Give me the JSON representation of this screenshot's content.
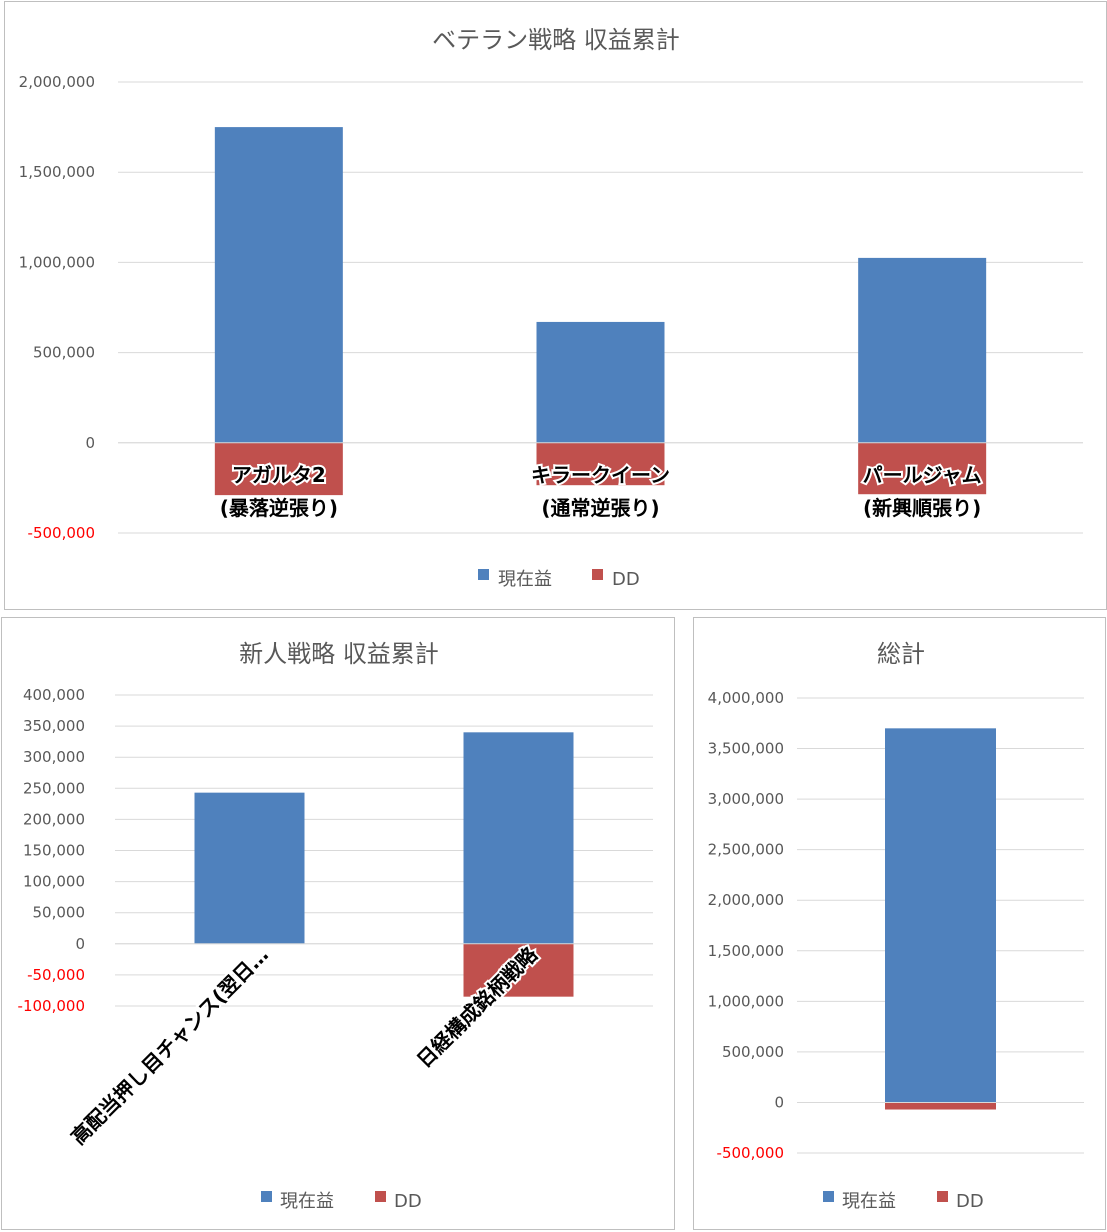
{
  "colors": {
    "series_profit": "#4f81bd",
    "series_dd": "#c0504d",
    "negative_tick": "#ff0000",
    "tick": "#595959",
    "grid": "#d9d9d9"
  },
  "legend": {
    "profit": "現在益",
    "dd": "DD"
  },
  "chart_data": [
    {
      "type": "bar",
      "stacked": true,
      "title": "ベテラン戦略 収益累計",
      "categories": [
        "アガルタ2\n(暴落逆張り)",
        "キラークイーン\n(通常逆張り)",
        "パールジャム\n(新興順張り)"
      ],
      "series": [
        {
          "name": "現在益",
          "values": [
            1750000,
            670000,
            1025000
          ]
        },
        {
          "name": "DD",
          "values": [
            -290000,
            -235000,
            -285000
          ]
        }
      ],
      "ylim": [
        -500000,
        2000000
      ],
      "yticks": [
        2000000,
        1500000,
        1000000,
        500000,
        0,
        -500000
      ],
      "ytick_labels": [
        "2,000,000",
        "1,500,000",
        "1,000,000",
        "500,000",
        "0",
        "-500,000"
      ],
      "grid": true,
      "legend_position": "bottom",
      "category_label_rotation": 0
    },
    {
      "type": "bar",
      "stacked": true,
      "title": "新人戦略 収益累計",
      "categories": [
        "高配当押し目チャンス(翌日…",
        "日経構成銘柄戦略"
      ],
      "series": [
        {
          "name": "現在益",
          "values": [
            243000,
            340000
          ]
        },
        {
          "name": "DD",
          "values": [
            0,
            -85000
          ]
        }
      ],
      "ylim": [
        -100000,
        400000
      ],
      "yticks": [
        400000,
        350000,
        300000,
        250000,
        200000,
        150000,
        100000,
        50000,
        0,
        -50000,
        -100000
      ],
      "ytick_labels": [
        "400,000",
        "350,000",
        "300,000",
        "250,000",
        "200,000",
        "150,000",
        "100,000",
        "50,000",
        "0",
        "-50,000",
        "-100,000"
      ],
      "grid": true,
      "legend_position": "bottom",
      "category_label_rotation": -45
    },
    {
      "type": "bar",
      "stacked": true,
      "title": "総計",
      "categories": [
        ""
      ],
      "series": [
        {
          "name": "現在益",
          "values": [
            3700000
          ]
        },
        {
          "name": "DD",
          "values": [
            -70000
          ]
        }
      ],
      "ylim": [
        -500000,
        4000000
      ],
      "yticks": [
        4000000,
        3500000,
        3000000,
        2500000,
        2000000,
        1500000,
        1000000,
        500000,
        0,
        -500000
      ],
      "ytick_labels": [
        "4,000,000",
        "3,500,000",
        "3,000,000",
        "2,500,000",
        "2,000,000",
        "1,500,000",
        "1,000,000",
        "500,000",
        "0",
        "-500,000"
      ],
      "grid": true,
      "legend_position": "bottom",
      "category_label_rotation": 0
    }
  ]
}
